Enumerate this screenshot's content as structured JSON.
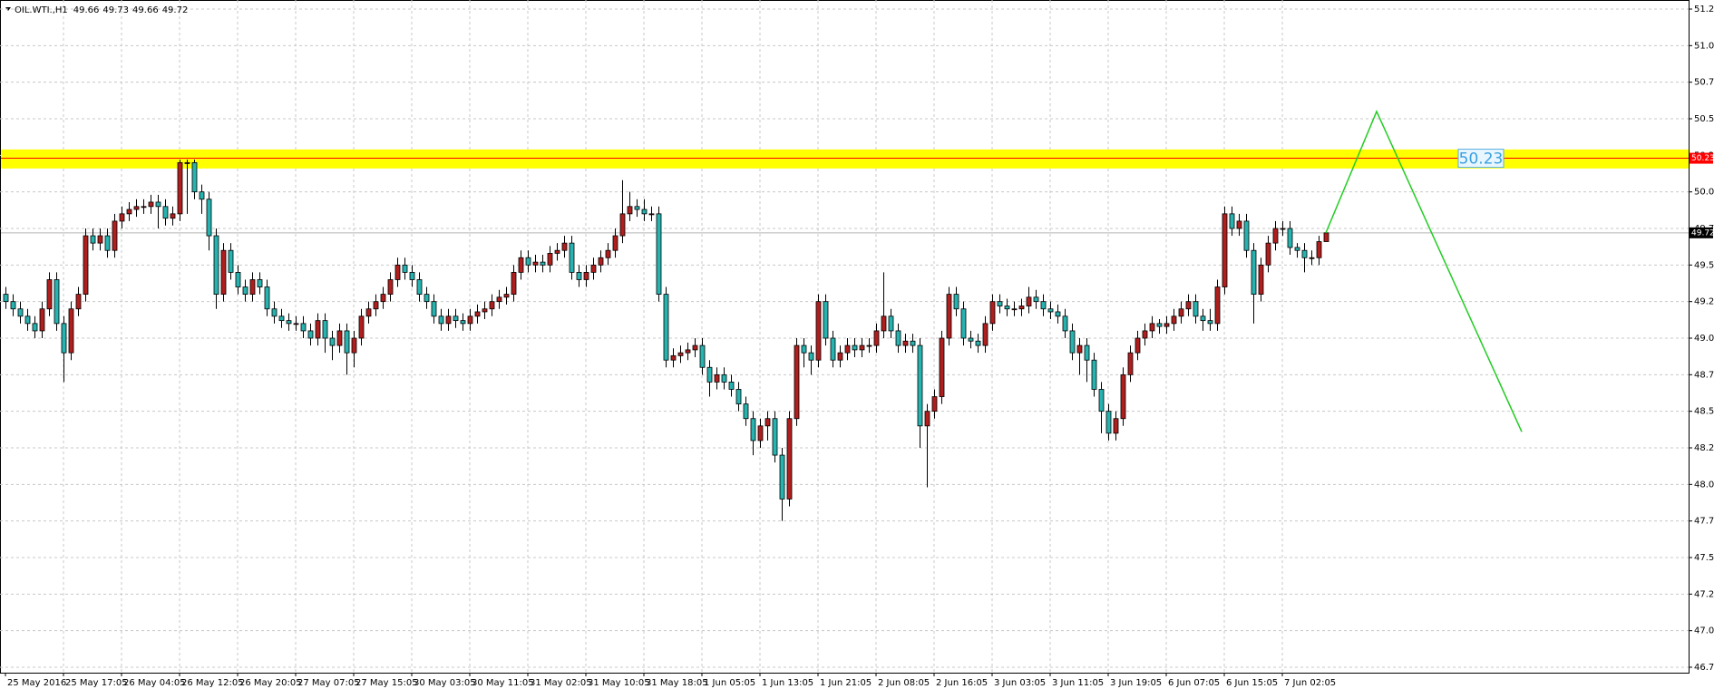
{
  "chart_data": {
    "type": "candlestick",
    "symbol": "OIL.WTI.,H1",
    "header_values": [
      49.66,
      49.73,
      49.66,
      49.72
    ],
    "up_color": "#b01e1e",
    "down_color": "#27b3b0",
    "outline_color": "#000000",
    "grid": true,
    "ylim": [
      46.75,
      51.25
    ],
    "yticks": [
      {
        "value": 46.75,
        "label": "46.75"
      },
      {
        "value": 47,
        "label": "47.00"
      },
      47.25,
      {
        "value": 47.5,
        "label": "47.50"
      },
      47.75,
      {
        "value": 48,
        "label": "48.00"
      },
      48.25,
      {
        "value": 48.5,
        "label": "48.50"
      },
      48.75,
      {
        "value": 49,
        "label": "49.00"
      },
      49.25,
      {
        "value": 49.5,
        "label": "49.50"
      },
      49.75,
      {
        "value": 50,
        "label": "50.00"
      },
      50.25,
      {
        "value": 50.5,
        "label": "50.50"
      },
      50.75,
      {
        "value": 51,
        "label": "51.00"
      },
      51.25
    ],
    "xticks": [
      {
        "value": 0,
        "label": "25 May 2016"
      },
      {
        "value": 8,
        "label": "25 May 17:05"
      },
      {
        "value": 16,
        "label": "26 May 04:05"
      },
      {
        "value": 24,
        "label": "26 May 12:05"
      },
      {
        "value": 32,
        "label": "26 May 20:05"
      },
      {
        "value": 40,
        "label": "27 May 07:05"
      },
      {
        "value": 48,
        "label": "27 May 15:05"
      },
      {
        "value": 56,
        "label": "30 May 03:05"
      },
      {
        "value": 64,
        "label": "30 May 11:05"
      },
      {
        "value": 72,
        "label": "31 May 02:05"
      },
      {
        "value": 80,
        "label": "31 May 10:05"
      },
      {
        "value": 88,
        "label": "31 May 18:05"
      },
      {
        "value": 96,
        "label": "1 Jun 05:05"
      },
      {
        "value": 104,
        "label": "1 Jun 13:05"
      },
      {
        "value": 112,
        "label": "1 Jun 21:05"
      },
      {
        "value": 120,
        "label": "2 Jun 08:05"
      },
      {
        "value": 128,
        "label": "2 Jun 16:05"
      },
      {
        "value": 136,
        "label": "3 Jun 03:05"
      },
      {
        "value": 144,
        "label": "3 Jun 11:05"
      },
      {
        "value": 152,
        "label": "3 Jun 19:05"
      },
      {
        "value": 160,
        "label": "6 Jun 07:05"
      },
      {
        "value": 168,
        "label": "6 Jun 15:05"
      },
      {
        "value": 176,
        "label": "7 Jun 02:05"
      }
    ],
    "xlim": [
      -0.75,
      232
    ],
    "level": {
      "value": 50.23,
      "color": "#ff0000",
      "band": [
        50.16,
        50.29
      ],
      "band_color": "#ffff00"
    },
    "projection": {
      "color": "#22cc22",
      "x": [
        182,
        189,
        209
      ],
      "values": [
        49.72,
        50.55,
        48.36
      ]
    },
    "series": [
      {
        "open": [
          49.3,
          49.25,
          49.2,
          49.15,
          49.1,
          49.05,
          49.2,
          49.4,
          49.1,
          48.9,
          49.2,
          49.3,
          49.7,
          49.65,
          49.7,
          49.6,
          49.8,
          49.85,
          49.88,
          49.9,
          49.9,
          49.93,
          49.9,
          49.82,
          49.85,
          50.2,
          50.2,
          50.0,
          49.95,
          49.7,
          49.3,
          49.6,
          49.45,
          49.35,
          49.3,
          49.4,
          49.35,
          49.2,
          49.15,
          49.12,
          49.1,
          49.1,
          49.05,
          49.0,
          49.12,
          49.0,
          48.95,
          49.05,
          48.9,
          49.0,
          49.15,
          49.2,
          49.25,
          49.3,
          49.4,
          49.5,
          49.45,
          49.4,
          49.3,
          49.25,
          49.15,
          49.1,
          49.15,
          49.12,
          49.1,
          49.15,
          49.18,
          49.2,
          49.25,
          49.28,
          49.3,
          49.45,
          49.55,
          49.5,
          49.52,
          49.5,
          49.58,
          49.6,
          49.65,
          49.45,
          49.4,
          49.45,
          49.5,
          49.55,
          49.6,
          49.7,
          49.85,
          49.9,
          49.88,
          49.85,
          49.85,
          49.3,
          48.85,
          48.88,
          48.9,
          48.92,
          48.95,
          48.8,
          48.7,
          48.75,
          48.7,
          48.65,
          48.55,
          48.45,
          48.3,
          48.4,
          48.45,
          48.2,
          47.9,
          48.45,
          48.95,
          48.9,
          48.85,
          49.25,
          49.0,
          48.85,
          48.9,
          48.95,
          48.92,
          48.95,
          48.95,
          49.05,
          49.15,
          49.05,
          48.95,
          48.98,
          48.95,
          48.4,
          48.5,
          48.6,
          49.0,
          49.3,
          49.2,
          49.0,
          48.98,
          48.95,
          49.1,
          49.25,
          49.22,
          49.2,
          49.2,
          49.22,
          49.28,
          49.25,
          49.2,
          49.18,
          49.15,
          49.05,
          48.9,
          48.95,
          48.85,
          48.65,
          48.5,
          48.35,
          48.45,
          48.75,
          48.9,
          49.0,
          49.05,
          49.1,
          49.08,
          49.1,
          49.15,
          49.2,
          49.25,
          49.15,
          49.12,
          49.1,
          49.35,
          49.85,
          49.75,
          49.8,
          49.6,
          49.3,
          49.5,
          49.65,
          49.75,
          49.75,
          49.62,
          49.6,
          49.55,
          49.55,
          49.66
        ],
        "high": [
          49.35,
          49.3,
          49.25,
          49.2,
          49.15,
          49.25,
          49.45,
          49.45,
          49.15,
          49.25,
          49.35,
          49.75,
          49.75,
          49.75,
          49.75,
          49.85,
          49.9,
          49.93,
          49.95,
          49.95,
          49.98,
          49.98,
          49.95,
          49.9,
          50.22,
          50.22,
          50.22,
          50.05,
          50.0,
          49.75,
          49.65,
          49.65,
          49.5,
          49.4,
          49.45,
          49.45,
          49.4,
          49.25,
          49.2,
          49.17,
          49.15,
          49.15,
          49.1,
          49.17,
          49.17,
          49.05,
          49.1,
          49.1,
          49.05,
          49.2,
          49.25,
          49.3,
          49.35,
          49.45,
          49.55,
          49.55,
          49.5,
          49.45,
          49.35,
          49.3,
          49.2,
          49.2,
          49.2,
          49.17,
          49.2,
          49.23,
          49.25,
          49.3,
          49.33,
          49.35,
          49.5,
          49.6,
          49.6,
          49.57,
          49.57,
          49.63,
          49.65,
          49.7,
          49.7,
          49.5,
          49.5,
          49.55,
          49.6,
          49.65,
          49.75,
          50.08,
          50.0,
          49.95,
          49.95,
          49.9,
          49.9,
          49.35,
          48.93,
          48.95,
          48.97,
          49.0,
          49.0,
          48.85,
          48.8,
          48.8,
          48.75,
          48.7,
          48.6,
          48.5,
          48.45,
          48.5,
          48.5,
          48.25,
          48.5,
          49.0,
          49.0,
          48.95,
          49.3,
          49.3,
          49.05,
          48.95,
          49.0,
          49.0,
          49.0,
          49.0,
          49.1,
          49.45,
          49.2,
          49.1,
          49.03,
          49.03,
          49.0,
          48.55,
          48.65,
          49.05,
          49.35,
          49.35,
          49.25,
          49.05,
          49.03,
          49.15,
          49.3,
          49.3,
          49.27,
          49.25,
          49.27,
          49.35,
          49.33,
          49.3,
          49.25,
          49.23,
          49.2,
          49.1,
          49.0,
          49.0,
          48.9,
          48.7,
          48.55,
          48.5,
          48.8,
          48.95,
          49.05,
          49.1,
          49.15,
          49.13,
          49.15,
          49.2,
          49.25,
          49.3,
          49.3,
          49.2,
          49.2,
          49.4,
          49.9,
          49.9,
          49.85,
          49.85,
          49.65,
          49.55,
          49.7,
          49.8,
          49.8,
          49.8,
          49.65,
          49.65,
          49.6,
          49.7,
          49.73
        ],
        "low": [
          49.2,
          49.15,
          49.1,
          49.05,
          49.0,
          49.0,
          49.15,
          49.05,
          48.7,
          48.85,
          49.15,
          49.25,
          49.6,
          49.6,
          49.55,
          49.55,
          49.75,
          49.8,
          49.83,
          49.85,
          49.85,
          49.75,
          49.77,
          49.77,
          49.8,
          49.85,
          49.95,
          49.85,
          49.6,
          49.2,
          49.25,
          49.4,
          49.3,
          49.25,
          49.25,
          49.3,
          49.15,
          49.1,
          49.07,
          49.05,
          49.05,
          49.0,
          48.95,
          48.95,
          48.9,
          48.85,
          48.9,
          48.75,
          48.8,
          48.95,
          49.1,
          49.15,
          49.2,
          49.25,
          49.35,
          49.4,
          49.35,
          49.25,
          49.2,
          49.1,
          49.05,
          49.05,
          49.07,
          49.05,
          49.05,
          49.1,
          49.13,
          49.15,
          49.2,
          49.23,
          49.25,
          49.4,
          49.45,
          49.45,
          49.45,
          49.45,
          49.53,
          49.55,
          49.4,
          49.35,
          49.35,
          49.4,
          49.45,
          49.5,
          49.55,
          49.65,
          49.8,
          49.83,
          49.8,
          49.8,
          49.25,
          48.8,
          48.8,
          48.83,
          48.85,
          48.87,
          48.75,
          48.6,
          48.65,
          48.65,
          48.6,
          48.5,
          48.4,
          48.2,
          48.25,
          48.3,
          48.15,
          47.75,
          47.85,
          48.4,
          48.8,
          48.75,
          48.8,
          48.95,
          48.8,
          48.8,
          48.85,
          48.87,
          48.87,
          48.9,
          48.9,
          49.0,
          49.0,
          48.9,
          48.9,
          48.9,
          48.25,
          47.98,
          48.45,
          48.55,
          48.95,
          49.15,
          48.95,
          48.93,
          48.9,
          48.9,
          49.05,
          49.17,
          49.15,
          49.15,
          49.15,
          49.17,
          49.2,
          49.15,
          49.13,
          49.1,
          49.0,
          48.85,
          48.75,
          48.7,
          48.6,
          48.35,
          48.3,
          48.3,
          48.4,
          48.7,
          48.85,
          48.95,
          49.0,
          49.03,
          49.03,
          49.05,
          49.1,
          49.15,
          49.1,
          49.05,
          49.05,
          49.05,
          49.3,
          49.7,
          49.7,
          49.55,
          49.1,
          49.25,
          49.45,
          49.6,
          49.7,
          49.57,
          49.55,
          49.45,
          49.5,
          49.5,
          49.66
        ],
        "close": [
          49.25,
          49.2,
          49.15,
          49.1,
          49.05,
          49.2,
          49.4,
          49.1,
          48.9,
          49.2,
          49.3,
          49.7,
          49.65,
          49.7,
          49.6,
          49.8,
          49.85,
          49.88,
          49.9,
          49.9,
          49.93,
          49.9,
          49.82,
          49.85,
          50.2,
          50.2,
          50.0,
          49.95,
          49.7,
          49.3,
          49.6,
          49.45,
          49.35,
          49.3,
          49.4,
          49.35,
          49.2,
          49.15,
          49.12,
          49.1,
          49.1,
          49.05,
          49.0,
          49.12,
          49.0,
          48.95,
          49.05,
          48.9,
          49.0,
          49.15,
          49.2,
          49.25,
          49.3,
          49.4,
          49.5,
          49.45,
          49.4,
          49.3,
          49.25,
          49.15,
          49.1,
          49.15,
          49.12,
          49.1,
          49.15,
          49.18,
          49.2,
          49.25,
          49.28,
          49.3,
          49.45,
          49.55,
          49.5,
          49.52,
          49.5,
          49.58,
          49.6,
          49.65,
          49.45,
          49.4,
          49.45,
          49.5,
          49.55,
          49.6,
          49.7,
          49.85,
          49.9,
          49.88,
          49.85,
          49.85,
          49.3,
          48.85,
          48.88,
          48.9,
          48.92,
          48.95,
          48.8,
          48.7,
          48.75,
          48.7,
          48.65,
          48.55,
          48.45,
          48.3,
          48.4,
          48.45,
          48.2,
          47.9,
          48.45,
          48.95,
          48.9,
          48.85,
          49.25,
          49.0,
          48.85,
          48.9,
          48.95,
          48.92,
          48.95,
          48.95,
          49.05,
          49.15,
          49.05,
          48.95,
          48.98,
          48.95,
          48.4,
          48.5,
          48.6,
          49.0,
          49.3,
          49.2,
          49.0,
          48.98,
          48.95,
          49.1,
          49.25,
          49.22,
          49.2,
          49.2,
          49.22,
          49.28,
          49.25,
          49.2,
          49.18,
          49.15,
          49.05,
          48.9,
          48.95,
          48.85,
          48.65,
          48.5,
          48.35,
          48.45,
          48.75,
          48.9,
          49.0,
          49.05,
          49.1,
          49.08,
          49.1,
          49.15,
          49.2,
          49.25,
          49.15,
          49.12,
          49.1,
          49.35,
          49.85,
          49.75,
          49.8,
          49.6,
          49.3,
          49.5,
          49.65,
          49.75,
          49.75,
          49.62,
          49.6,
          49.55,
          49.55,
          49.66,
          49.72
        ]
      }
    ]
  }
}
